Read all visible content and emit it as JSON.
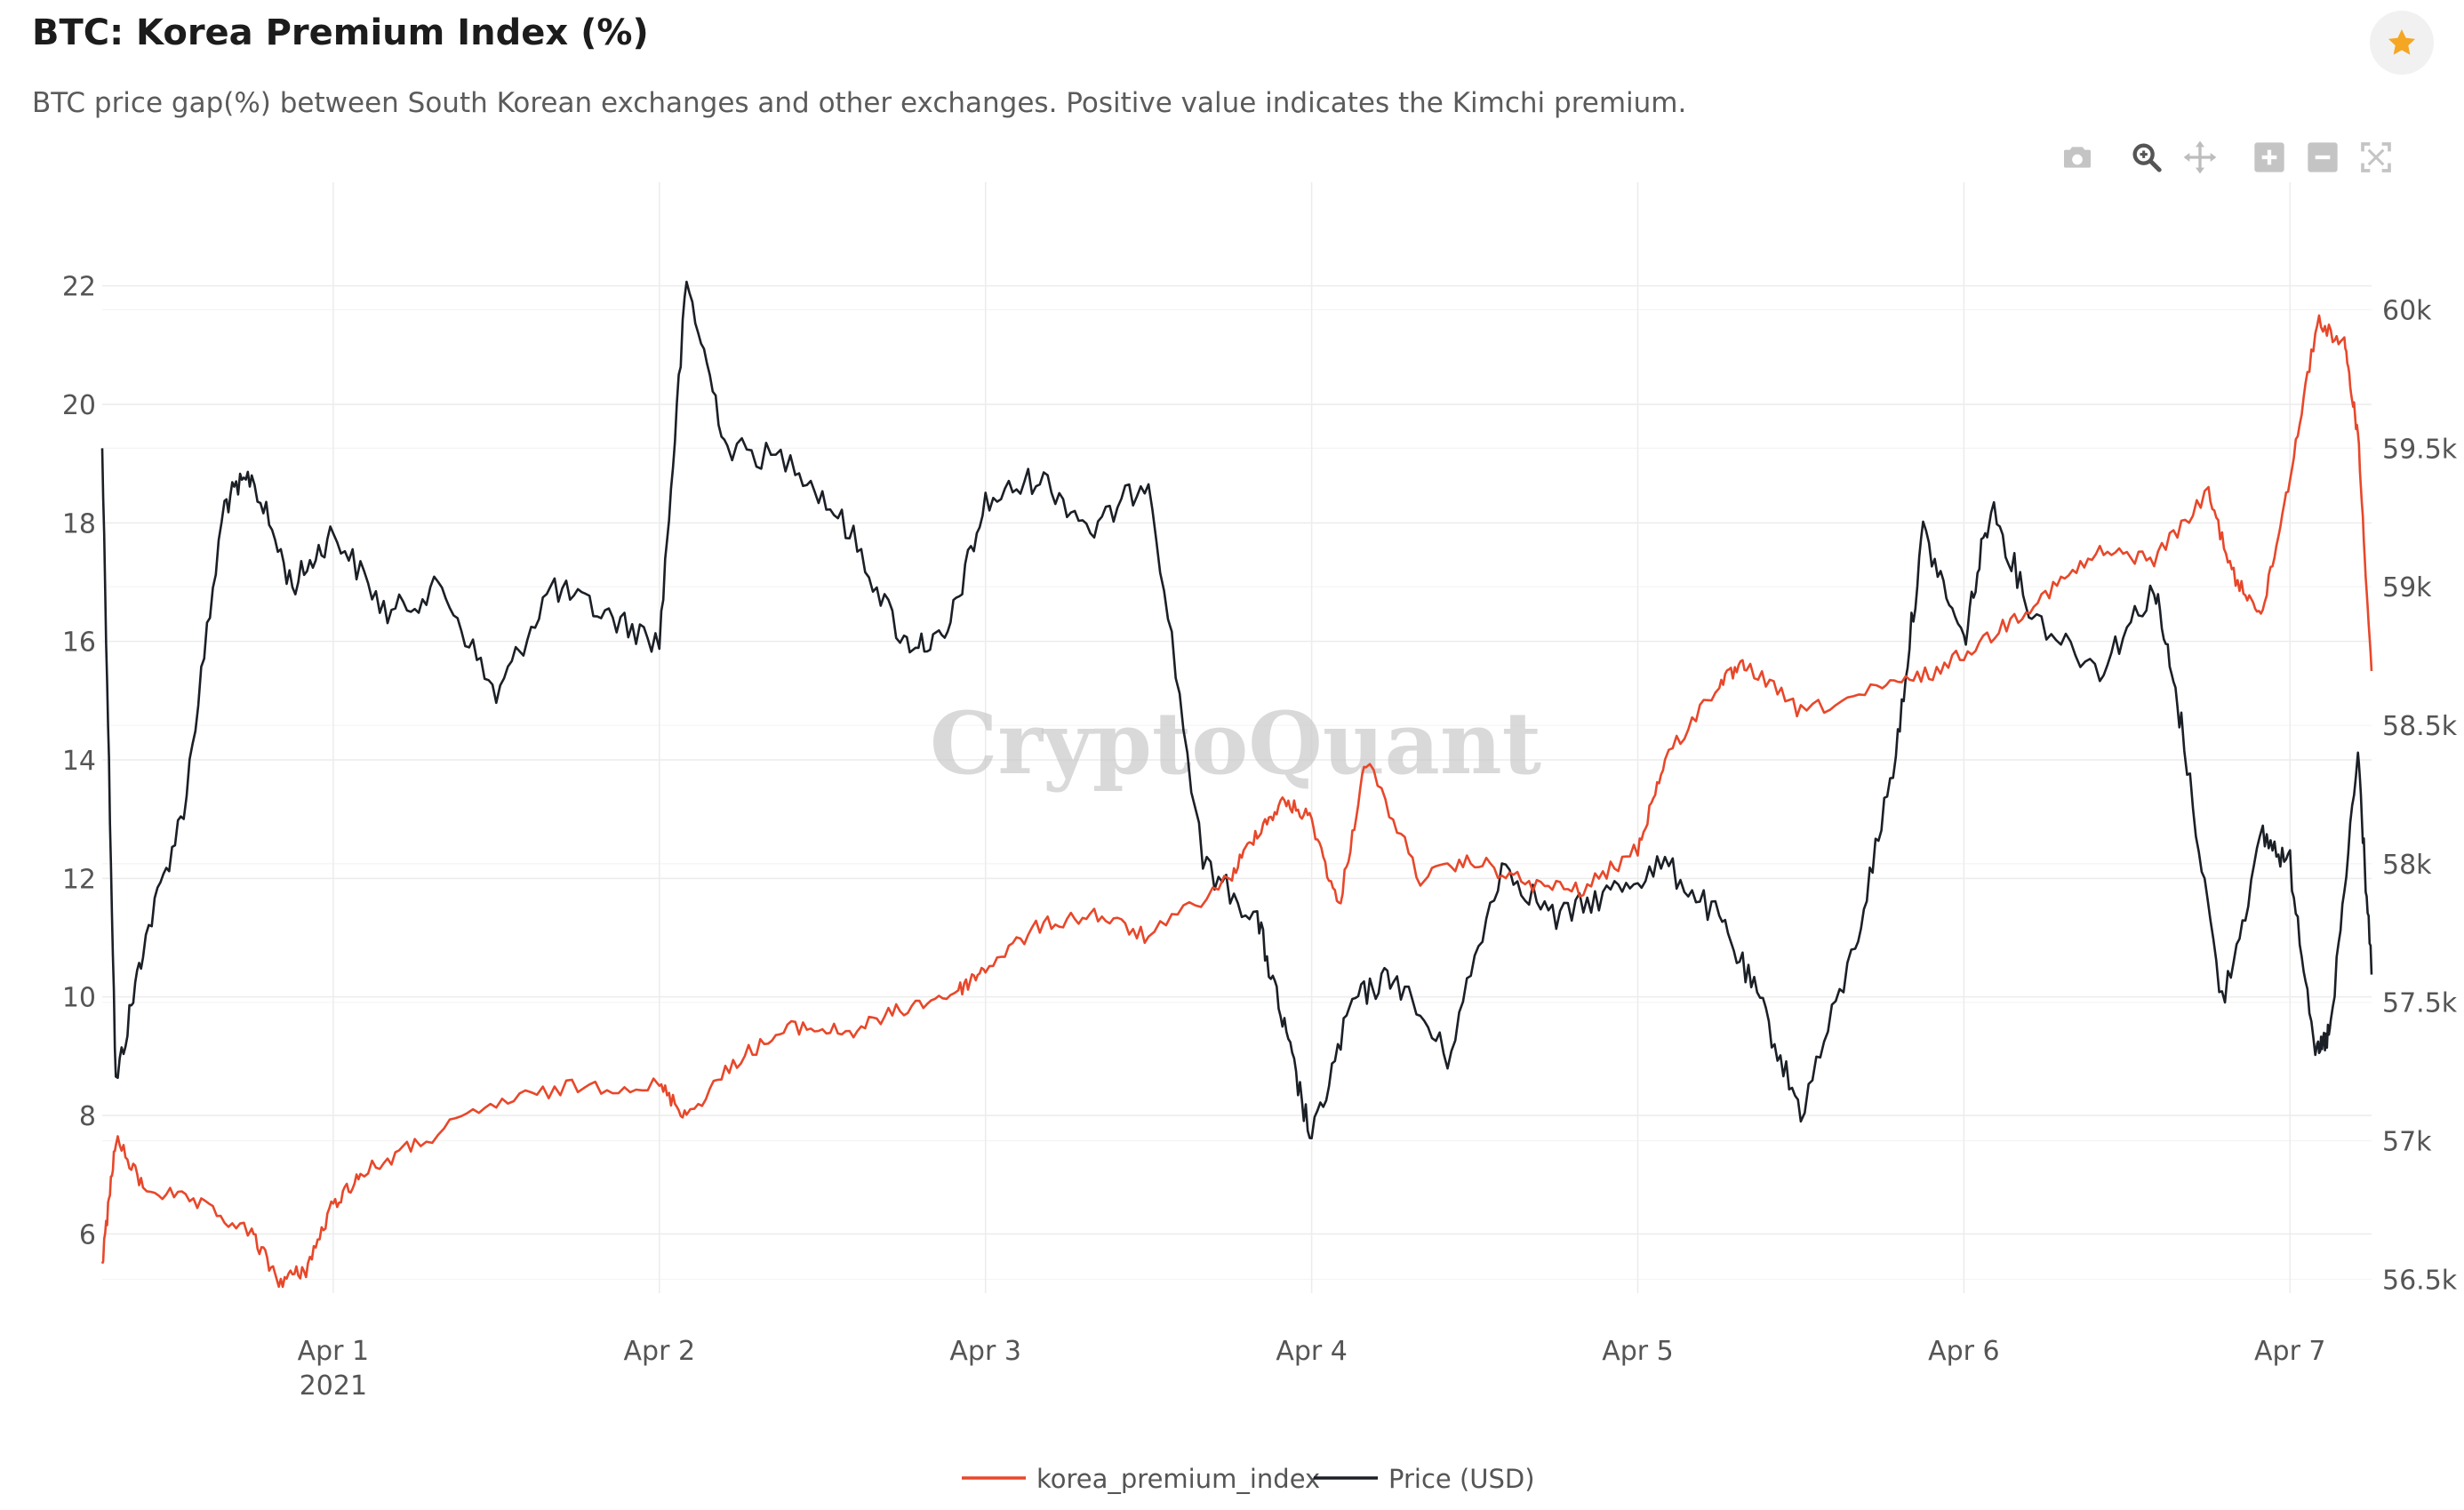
{
  "header": {
    "title": "BTC: Korea Premium Index (%)",
    "subtitle": "BTC price gap(%) between South Korean exchanges and other exchanges. Positive value indicates the Kimchi premium."
  },
  "watermark": "CryptoQuant",
  "toolbar": {
    "icons": [
      "camera-icon",
      "zoom-icon",
      "pan-icon",
      "zoom-in-icon",
      "zoom-out-icon",
      "autoscale-icon"
    ]
  },
  "colors": {
    "premium": "#e8472a",
    "price": "#1b1f26",
    "star": "#f5a623",
    "grid": "#ececec"
  },
  "chart_data": {
    "type": "line",
    "title": "BTC: Korea Premium Index (%)",
    "x_ticks": [
      {
        "label": "Apr 1",
        "sublabel": "2021",
        "day": 1
      },
      {
        "label": "Apr 2",
        "sublabel": "",
        "day": 2
      },
      {
        "label": "Apr 3",
        "sublabel": "",
        "day": 3
      },
      {
        "label": "Apr 4",
        "sublabel": "",
        "day": 4
      },
      {
        "label": "Apr 5",
        "sublabel": "",
        "day": 5
      },
      {
        "label": "Apr 6",
        "sublabel": "",
        "day": 6
      },
      {
        "label": "Apr 7",
        "sublabel": "",
        "day": 7
      }
    ],
    "xlim": [
      "2021-03-31 07:00",
      "2021-04-07 06:00"
    ],
    "y_left": {
      "range": [
        5,
        23
      ],
      "ticks": [
        "6",
        "8",
        "10",
        "12",
        "14",
        "16",
        "18",
        "20",
        "22"
      ]
    },
    "y_right": {
      "range": [
        56450,
        60300
      ],
      "ticks": [
        {
          "value": 56500,
          "label": "56.5k"
        },
        {
          "value": 57000,
          "label": "57k"
        },
        {
          "value": 57500,
          "label": "57.5k"
        },
        {
          "value": 58000,
          "label": "58k"
        },
        {
          "value": 58500,
          "label": "58.5k"
        },
        {
          "value": 59000,
          "label": "59k"
        },
        {
          "value": 59500,
          "label": "59.5k"
        },
        {
          "value": 60000,
          "label": "60k"
        }
      ]
    },
    "grid": true,
    "legend_position": "bottom-center",
    "series": [
      {
        "name": "korea_premium_index",
        "axis": "left",
        "color": "#e8472a",
        "x": [
          "2021-03-31 07:00",
          "2021-03-31 08:00",
          "2021-03-31 10:00",
          "2021-03-31 14:00",
          "2021-03-31 18:00",
          "2021-03-31 20:00",
          "2021-03-31 22:00",
          "2021-04-01 00:00",
          "2021-04-01 02:00",
          "2021-04-01 06:00",
          "2021-04-01 12:00",
          "2021-04-01 18:00",
          "2021-04-02 00:00",
          "2021-04-02 02:00",
          "2021-04-02 06:00",
          "2021-04-02 10:00",
          "2021-04-02 14:00",
          "2021-04-02 18:00",
          "2021-04-02 22:00",
          "2021-04-03 00:00",
          "2021-04-03 04:00",
          "2021-04-03 08:00",
          "2021-04-03 12:00",
          "2021-04-03 18:00",
          "2021-04-03 20:00",
          "2021-04-03 22:00",
          "2021-04-04 00:00",
          "2021-04-04 02:00",
          "2021-04-04 04:00",
          "2021-04-04 08:00",
          "2021-04-04 12:00",
          "2021-04-04 16:00",
          "2021-04-04 20:00",
          "2021-04-05 00:00",
          "2021-04-05 02:00",
          "2021-04-05 06:00",
          "2021-04-05 08:00",
          "2021-04-05 12:00",
          "2021-04-05 18:00",
          "2021-04-05 22:00",
          "2021-04-06 02:00",
          "2021-04-06 06:00",
          "2021-04-06 10:00",
          "2021-04-06 14:00",
          "2021-04-06 18:00",
          "2021-04-06 20:00",
          "2021-04-06 22:00",
          "2021-04-07 00:00",
          "2021-04-07 02:00",
          "2021-04-07 04:00",
          "2021-04-07 05:00",
          "2021-04-07 06:00"
        ],
        "values": [
          5.5,
          7.6,
          6.8,
          6.5,
          6.0,
          5.2,
          5.4,
          6.5,
          7.0,
          7.5,
          8.2,
          8.5,
          8.5,
          8.0,
          9.0,
          9.5,
          9.4,
          9.8,
          10.1,
          10.5,
          11.2,
          11.4,
          11.0,
          12.0,
          12.8,
          13.3,
          13.0,
          11.5,
          14.0,
          12.0,
          12.3,
          11.9,
          11.8,
          12.5,
          14.0,
          15.3,
          15.6,
          14.8,
          15.2,
          15.5,
          16.1,
          16.8,
          17.5,
          17.4,
          18.5,
          17.0,
          16.5,
          18.8,
          21.4,
          21.0,
          19.5,
          15.5
        ]
      },
      {
        "name": "Price (USD)",
        "axis": "right",
        "color": "#1b1f26",
        "x": [
          "2021-03-31 07:00",
          "2021-03-31 08:00",
          "2021-03-31 10:00",
          "2021-03-31 13:00",
          "2021-03-31 16:00",
          "2021-03-31 18:00",
          "2021-03-31 21:00",
          "2021-04-01 00:00",
          "2021-04-01 04:00",
          "2021-04-01 08:00",
          "2021-04-01 12:00",
          "2021-04-01 16:00",
          "2021-04-01 20:00",
          "2021-04-02 00:00",
          "2021-04-02 02:00",
          "2021-04-02 05:00",
          "2021-04-02 10:00",
          "2021-04-02 14:00",
          "2021-04-02 18:00",
          "2021-04-02 21:00",
          "2021-04-03 00:00",
          "2021-04-03 04:00",
          "2021-04-03 08:00",
          "2021-04-03 12:00",
          "2021-04-03 16:00",
          "2021-04-03 20:00",
          "2021-04-03 22:00",
          "2021-04-04 00:00",
          "2021-04-04 03:00",
          "2021-04-04 06:00",
          "2021-04-04 10:00",
          "2021-04-04 14:00",
          "2021-04-04 18:00",
          "2021-04-04 22:00",
          "2021-04-05 02:00",
          "2021-04-05 06:00",
          "2021-04-05 09:00",
          "2021-04-05 12:00",
          "2021-04-05 16:00",
          "2021-04-05 19:00",
          "2021-04-05 21:00",
          "2021-04-06 00:00",
          "2021-04-06 02:00",
          "2021-04-06 05:00",
          "2021-04-06 10:00",
          "2021-04-06 14:00",
          "2021-04-06 16:00",
          "2021-04-06 19:00",
          "2021-04-06 22:00",
          "2021-04-07 00:00",
          "2021-04-07 02:00",
          "2021-04-07 03:00",
          "2021-04-07 05:00",
          "2021-04-07 06:00"
        ],
        "values": [
          59500,
          57200,
          57700,
          58200,
          59300,
          59400,
          59000,
          59200,
          58900,
          59000,
          58600,
          59000,
          58900,
          58800,
          60100,
          59500,
          59450,
          59200,
          58800,
          58800,
          59300,
          59400,
          59200,
          59400,
          58000,
          57800,
          57400,
          57000,
          57500,
          57600,
          57300,
          58000,
          57800,
          57900,
          58000,
          57800,
          57500,
          57100,
          57700,
          58400,
          59200,
          58800,
          59300,
          58900,
          58700,
          59000,
          58500,
          57500,
          58100,
          58000,
          57300,
          57400,
          58400,
          57600
        ]
      }
    ]
  }
}
